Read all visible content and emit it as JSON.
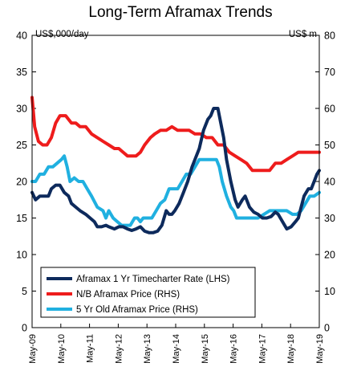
{
  "chart_data": {
    "type": "line",
    "title": "Long-Term Aframax Trends",
    "left_unit": "US$,000/day",
    "right_unit": "US$ m",
    "left_axis": {
      "min": 0,
      "max": 40,
      "step": 5,
      "ticks": [
        "0",
        "5",
        "10",
        "15",
        "20",
        "25",
        "30",
        "35",
        "40"
      ]
    },
    "right_axis": {
      "min": 0,
      "max": 80,
      "step": 10,
      "ticks": [
        "0",
        "10",
        "20",
        "30",
        "40",
        "50",
        "60",
        "70",
        "80"
      ]
    },
    "x_range": [
      2009.33,
      2019.33
    ],
    "x_ticks": [
      {
        "label": "May-09",
        "value": 2009.33
      },
      {
        "label": "May-10",
        "value": 2010.33
      },
      {
        "label": "May-11",
        "value": 2011.33
      },
      {
        "label": "May-12",
        "value": 2012.33
      },
      {
        "label": "May-13",
        "value": 2013.33
      },
      {
        "label": "May-14",
        "value": 2014.33
      },
      {
        "label": "May-15",
        "value": 2015.33
      },
      {
        "label": "May-16",
        "value": 2016.33
      },
      {
        "label": "May-17",
        "value": 2017.33
      },
      {
        "label": "May-18",
        "value": 2018.33
      },
      {
        "label": "May-19",
        "value": 2019.33
      }
    ],
    "legend_position": "bottom-left",
    "series": [
      {
        "name": "Aframax 1 Yr Timecharter Rate (LHS)",
        "axis": "left",
        "color": "#0d2a5c",
        "points": [
          [
            2009.33,
            18.5
          ],
          [
            2009.45,
            17.5
          ],
          [
            2009.6,
            18
          ],
          [
            2009.75,
            18
          ],
          [
            2009.9,
            18
          ],
          [
            2010.0,
            19
          ],
          [
            2010.15,
            19.5
          ],
          [
            2010.3,
            19.5
          ],
          [
            2010.45,
            18.5
          ],
          [
            2010.6,
            18
          ],
          [
            2010.7,
            17
          ],
          [
            2010.85,
            16.5
          ],
          [
            2011.0,
            16
          ],
          [
            2011.2,
            15.5
          ],
          [
            2011.35,
            15
          ],
          [
            2011.5,
            14.5
          ],
          [
            2011.6,
            13.8
          ],
          [
            2011.75,
            13.8
          ],
          [
            2011.9,
            14
          ],
          [
            2012.0,
            13.8
          ],
          [
            2012.2,
            13.5
          ],
          [
            2012.35,
            13.8
          ],
          [
            2012.5,
            13.8
          ],
          [
            2012.65,
            13.5
          ],
          [
            2012.8,
            13.3
          ],
          [
            2012.95,
            13.5
          ],
          [
            2013.1,
            13.8
          ],
          [
            2013.25,
            13.2
          ],
          [
            2013.4,
            13.0
          ],
          [
            2013.55,
            13.0
          ],
          [
            2013.7,
            13.2
          ],
          [
            2013.85,
            14
          ],
          [
            2014.0,
            16
          ],
          [
            2014.1,
            15.5
          ],
          [
            2014.2,
            15.5
          ],
          [
            2014.3,
            16
          ],
          [
            2014.45,
            17
          ],
          [
            2014.6,
            18.5
          ],
          [
            2014.75,
            20
          ],
          [
            2014.9,
            22
          ],
          [
            2015.0,
            23
          ],
          [
            2015.15,
            24.5
          ],
          [
            2015.3,
            27
          ],
          [
            2015.45,
            28.5
          ],
          [
            2015.55,
            29
          ],
          [
            2015.65,
            30
          ],
          [
            2015.8,
            30
          ],
          [
            2015.9,
            28
          ],
          [
            2016.0,
            26
          ],
          [
            2016.1,
            23
          ],
          [
            2016.25,
            20
          ],
          [
            2016.4,
            17.5
          ],
          [
            2016.5,
            16.5
          ],
          [
            2016.65,
            17.5
          ],
          [
            2016.75,
            18
          ],
          [
            2016.9,
            16.5
          ],
          [
            2017.05,
            15.8
          ],
          [
            2017.2,
            15.5
          ],
          [
            2017.35,
            15
          ],
          [
            2017.5,
            15
          ],
          [
            2017.65,
            15.2
          ],
          [
            2017.8,
            15.8
          ],
          [
            2017.9,
            15.5
          ],
          [
            2018.05,
            14.5
          ],
          [
            2018.2,
            13.5
          ],
          [
            2018.35,
            13.8
          ],
          [
            2018.5,
            14.5
          ],
          [
            2018.6,
            15
          ],
          [
            2018.7,
            16.5
          ],
          [
            2018.8,
            18
          ],
          [
            2018.95,
            19
          ],
          [
            2019.05,
            19
          ],
          [
            2019.15,
            20
          ],
          [
            2019.25,
            21
          ],
          [
            2019.33,
            21.5
          ]
        ]
      },
      {
        "name": "N/B Aframax Price (RHS)",
        "axis": "right",
        "color": "#ee1c1c",
        "points": [
          [
            2009.33,
            63
          ],
          [
            2009.42,
            55
          ],
          [
            2009.55,
            51
          ],
          [
            2009.7,
            50
          ],
          [
            2009.85,
            50
          ],
          [
            2010.0,
            52
          ],
          [
            2010.15,
            56
          ],
          [
            2010.3,
            58
          ],
          [
            2010.5,
            58
          ],
          [
            2010.7,
            56
          ],
          [
            2010.85,
            56
          ],
          [
            2011.0,
            55
          ],
          [
            2011.2,
            55
          ],
          [
            2011.4,
            53
          ],
          [
            2011.6,
            52
          ],
          [
            2011.8,
            51
          ],
          [
            2012.0,
            50
          ],
          [
            2012.2,
            49
          ],
          [
            2012.35,
            49
          ],
          [
            2012.5,
            48
          ],
          [
            2012.65,
            47
          ],
          [
            2012.8,
            47
          ],
          [
            2012.95,
            47
          ],
          [
            2013.1,
            48
          ],
          [
            2013.25,
            50
          ],
          [
            2013.45,
            52
          ],
          [
            2013.6,
            53
          ],
          [
            2013.8,
            54
          ],
          [
            2014.0,
            54
          ],
          [
            2014.2,
            55
          ],
          [
            2014.4,
            54
          ],
          [
            2014.6,
            54
          ],
          [
            2014.8,
            54
          ],
          [
            2015.0,
            53
          ],
          [
            2015.2,
            53
          ],
          [
            2015.4,
            52
          ],
          [
            2015.6,
            52
          ],
          [
            2015.8,
            50
          ],
          [
            2016.0,
            50
          ],
          [
            2016.2,
            48
          ],
          [
            2016.4,
            47
          ],
          [
            2016.6,
            46
          ],
          [
            2016.8,
            45
          ],
          [
            2017.0,
            43
          ],
          [
            2017.2,
            43
          ],
          [
            2017.4,
            43
          ],
          [
            2017.6,
            43
          ],
          [
            2017.8,
            45
          ],
          [
            2018.0,
            45
          ],
          [
            2018.2,
            46
          ],
          [
            2018.4,
            47
          ],
          [
            2018.6,
            48
          ],
          [
            2018.8,
            48
          ],
          [
            2019.0,
            48
          ],
          [
            2019.2,
            48
          ],
          [
            2019.33,
            48
          ]
        ]
      },
      {
        "name": "5 Yr Old Aframax Price (RHS)",
        "axis": "right",
        "color": "#20b0e0",
        "points": [
          [
            2009.33,
            40
          ],
          [
            2009.45,
            40
          ],
          [
            2009.6,
            42
          ],
          [
            2009.75,
            42
          ],
          [
            2009.9,
            44
          ],
          [
            2010.05,
            44
          ],
          [
            2010.2,
            45
          ],
          [
            2010.35,
            46
          ],
          [
            2010.45,
            47
          ],
          [
            2010.55,
            44
          ],
          [
            2010.65,
            40
          ],
          [
            2010.8,
            41
          ],
          [
            2010.95,
            40
          ],
          [
            2011.1,
            40
          ],
          [
            2011.25,
            38
          ],
          [
            2011.4,
            36
          ],
          [
            2011.6,
            33
          ],
          [
            2011.8,
            32
          ],
          [
            2011.9,
            30
          ],
          [
            2012.0,
            32
          ],
          [
            2012.15,
            30
          ],
          [
            2012.3,
            29
          ],
          [
            2012.45,
            28
          ],
          [
            2012.6,
            28
          ],
          [
            2012.75,
            28
          ],
          [
            2012.9,
            30
          ],
          [
            2013.0,
            30
          ],
          [
            2013.1,
            29
          ],
          [
            2013.2,
            30
          ],
          [
            2013.35,
            30
          ],
          [
            2013.5,
            30
          ],
          [
            2013.65,
            32
          ],
          [
            2013.8,
            34
          ],
          [
            2013.95,
            35
          ],
          [
            2014.1,
            38
          ],
          [
            2014.25,
            38
          ],
          [
            2014.4,
            38
          ],
          [
            2014.55,
            40
          ],
          [
            2014.7,
            42
          ],
          [
            2014.85,
            42
          ],
          [
            2015.0,
            44
          ],
          [
            2015.15,
            46
          ],
          [
            2015.3,
            46
          ],
          [
            2015.45,
            46
          ],
          [
            2015.6,
            46
          ],
          [
            2015.75,
            46
          ],
          [
            2015.85,
            44
          ],
          [
            2015.95,
            40
          ],
          [
            2016.1,
            36
          ],
          [
            2016.25,
            33
          ],
          [
            2016.35,
            32
          ],
          [
            2016.45,
            30
          ],
          [
            2016.6,
            30
          ],
          [
            2016.75,
            30
          ],
          [
            2016.9,
            30
          ],
          [
            2017.05,
            30
          ],
          [
            2017.2,
            30
          ],
          [
            2017.4,
            31
          ],
          [
            2017.6,
            32
          ],
          [
            2017.8,
            32
          ],
          [
            2018.0,
            32
          ],
          [
            2018.2,
            32
          ],
          [
            2018.4,
            31
          ],
          [
            2018.55,
            31
          ],
          [
            2018.7,
            32
          ],
          [
            2018.85,
            34
          ],
          [
            2019.0,
            36
          ],
          [
            2019.15,
            36
          ],
          [
            2019.33,
            37
          ]
        ]
      }
    ]
  }
}
